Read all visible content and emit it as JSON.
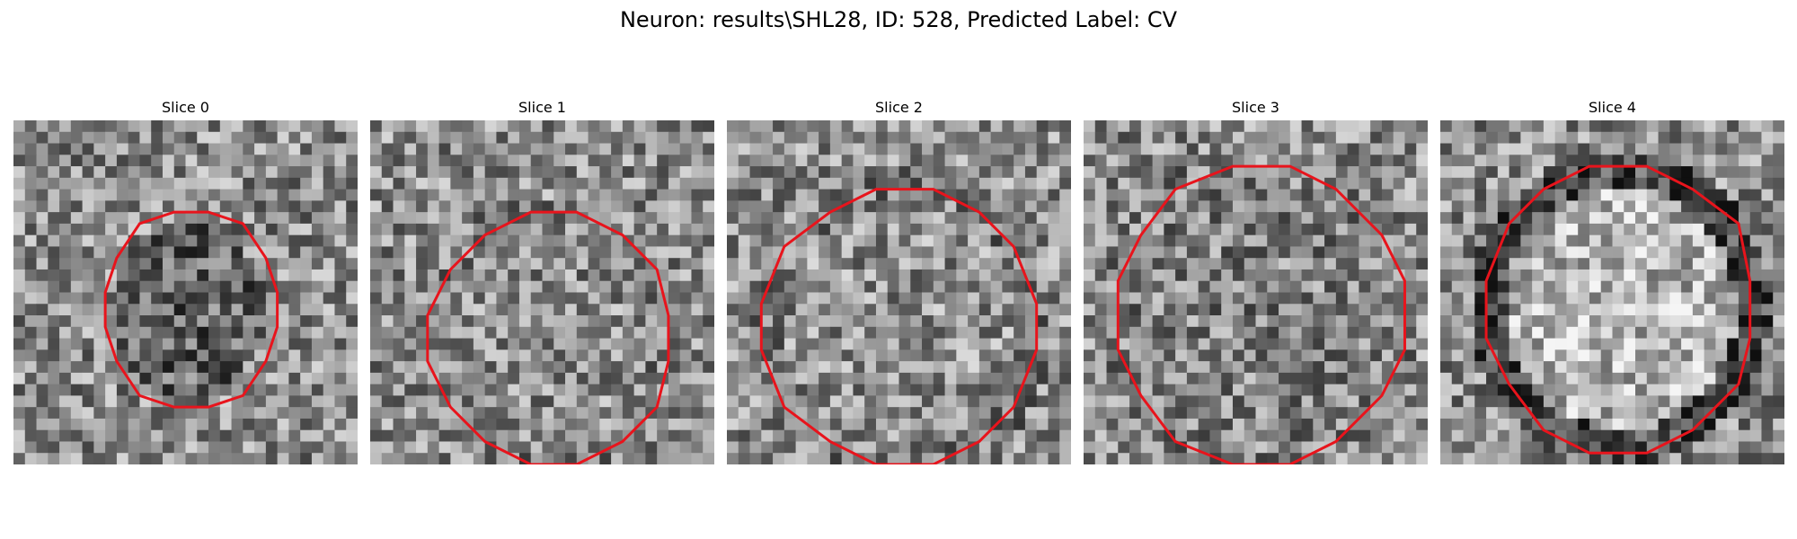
{
  "figure": {
    "title": "Neuron: results\\SHL28, ID: 528, Predicted Label: CV"
  },
  "panels": [
    {
      "title": "Slice 0",
      "contour_color": "#e8141c"
    },
    {
      "title": "Slice 1",
      "contour_color": "#e8141c"
    },
    {
      "title": "Slice 2",
      "contour_color": "#e8141c"
    },
    {
      "title": "Slice 3",
      "contour_color": "#e8141c"
    },
    {
      "title": "Slice 4",
      "contour_color": "#e8141c"
    }
  ],
  "colormap": "gray"
}
